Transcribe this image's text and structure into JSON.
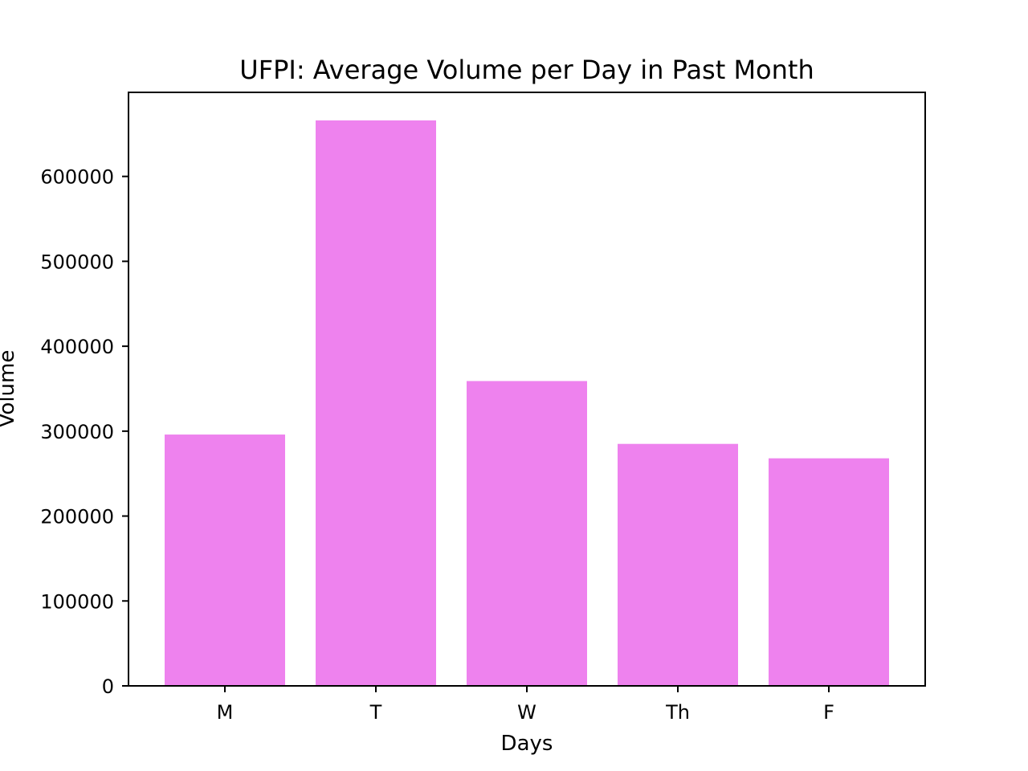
{
  "chart_data": {
    "type": "bar",
    "title": "UFPI: Average Volume per Day in Past Month",
    "xlabel": "Days",
    "ylabel": "Volume",
    "categories": [
      "M",
      "T",
      "W",
      "Th",
      "F"
    ],
    "values": [
      296000,
      666000,
      359000,
      285000,
      268000
    ],
    "yticks": [
      0,
      100000,
      200000,
      300000,
      400000,
      500000,
      600000
    ],
    "ytick_labels": [
      "0",
      "100000",
      "200000",
      "300000",
      "400000",
      "500000",
      "600000"
    ],
    "ylim": [
      0,
      699000
    ],
    "grid": false,
    "legend": "none",
    "bar_color": "#ee82ee"
  }
}
